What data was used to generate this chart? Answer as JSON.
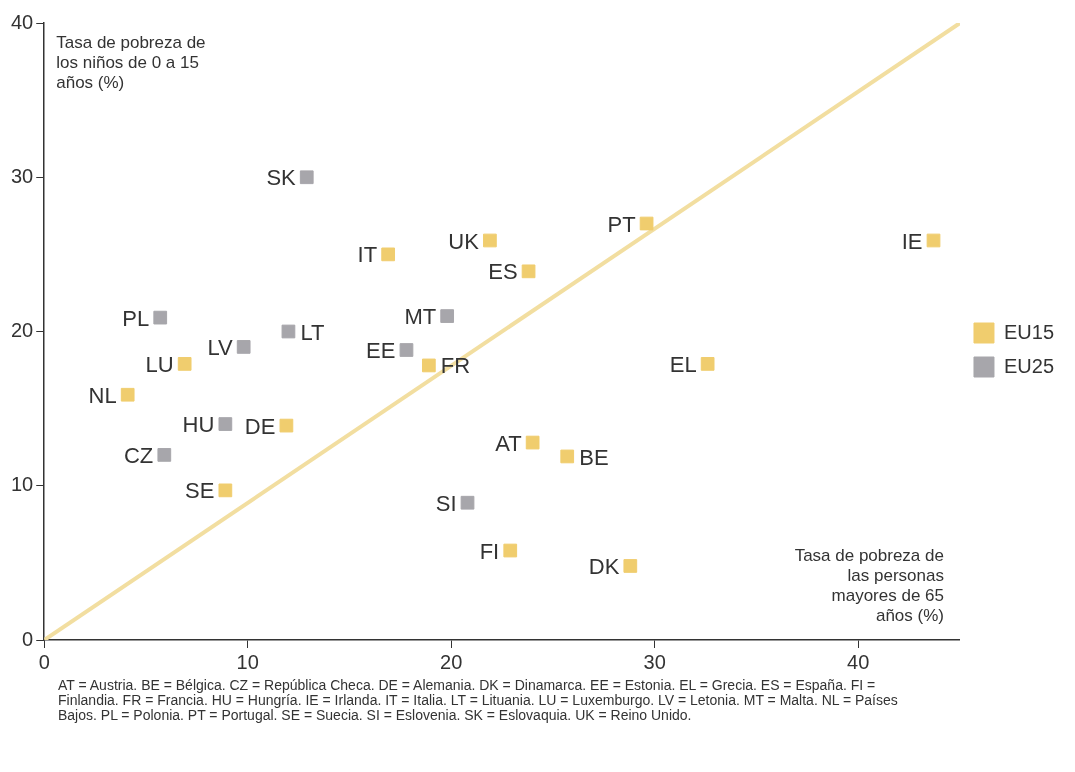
{
  "chart_data": {
    "type": "scatter",
    "xlabel": "Tasa de pobreza de las personas mayores de 65 años (%)",
    "ylabel": "Tasa de pobreza de los niños de 0 a 15 años (%)",
    "xlim": [
      0,
      45
    ],
    "xticks": [
      0,
      10,
      20,
      30,
      40
    ],
    "ylim": [
      0,
      40
    ],
    "yticks": [
      0,
      10,
      20,
      30,
      40
    ],
    "grid": false,
    "legend": "right",
    "marker": "square",
    "series": [
      {
        "name": "EU15",
        "color": "#f0cd6e",
        "x": [
          16.9,
          21.9,
          23.8,
          29.6,
          43.7,
          18.9,
          6.9,
          4.1,
          32.6,
          11.9,
          24.0,
          25.7,
          8.9,
          22.9,
          28.8
        ],
        "values": [
          25.0,
          25.9,
          23.9,
          27.0,
          25.9,
          17.8,
          17.9,
          15.9,
          17.9,
          13.9,
          12.8,
          11.9,
          9.7,
          5.8,
          4.8
        ]
      },
      {
        "name": "EU25",
        "color": "#a7a6ab",
        "x": [
          12.9,
          5.7,
          9.8,
          12.0,
          19.8,
          17.8,
          8.9,
          5.9,
          20.8
        ],
        "values": [
          30.0,
          20.9,
          19.0,
          20.0,
          21.0,
          18.8,
          14.0,
          12.0,
          8.9
        ]
      },
      {
        "type": "line",
        "marker": "none",
        "color": "#f2dea0",
        "x": [
          0,
          45
        ],
        "values": [
          0,
          40
        ]
      }
    ],
    "annotations": [
      {
        "text": "IT",
        "x": 16.9,
        "y": 25.0
      },
      {
        "text": "UK",
        "x": 21.9,
        "y": 25.9
      },
      {
        "text": "ES",
        "x": 23.8,
        "y": 23.9
      },
      {
        "text": "PT",
        "x": 29.6,
        "y": 27.0
      },
      {
        "text": "IE",
        "x": 43.7,
        "y": 25.9
      },
      {
        "text": "FR",
        "x": 18.9,
        "y": 17.8
      },
      {
        "text": "LU",
        "x": 6.9,
        "y": 17.9
      },
      {
        "text": "NL",
        "x": 4.1,
        "y": 15.9
      },
      {
        "text": "EL",
        "x": 32.6,
        "y": 17.9
      },
      {
        "text": "DE",
        "x": 11.9,
        "y": 13.9
      },
      {
        "text": "AT",
        "x": 24.0,
        "y": 12.8
      },
      {
        "text": "BE",
        "x": 25.7,
        "y": 11.9
      },
      {
        "text": "SE",
        "x": 8.9,
        "y": 9.7
      },
      {
        "text": "FI",
        "x": 22.9,
        "y": 5.8
      },
      {
        "text": "DK",
        "x": 28.8,
        "y": 4.8
      },
      {
        "text": "SK",
        "x": 12.9,
        "y": 30.0
      },
      {
        "text": "PL",
        "x": 5.7,
        "y": 20.9
      },
      {
        "text": "LV",
        "x": 9.8,
        "y": 19.0
      },
      {
        "text": "LT",
        "x": 12.0,
        "y": 20.0
      },
      {
        "text": "MT",
        "x": 19.8,
        "y": 21.0
      },
      {
        "text": "EE",
        "x": 17.8,
        "y": 18.8
      },
      {
        "text": "HU",
        "x": 8.9,
        "y": 14.0
      },
      {
        "text": "CZ",
        "x": 5.9,
        "y": 12.0
      },
      {
        "text": "SI",
        "x": 20.8,
        "y": 8.9
      },
      "AT = Austria. BE = Bélgica. CZ = República Checa. DE = Alemania. DK = Dinamarca. EE = Estonia. EL = Grecia. ES = España. FI = Finlandia. FR = Francia. HU = Hungría. IE = Irlanda. IT = Italia. LT = Lituania. LU = Luxemburgo. LV = Letonia. MT = Malta. NL = Países Bajos. PL = Polonia. PT = Portugal. SE = Suecia. SI = Eslovenia. SK = Eslovaquia. UK = Reino Unido."
    ]
  }
}
